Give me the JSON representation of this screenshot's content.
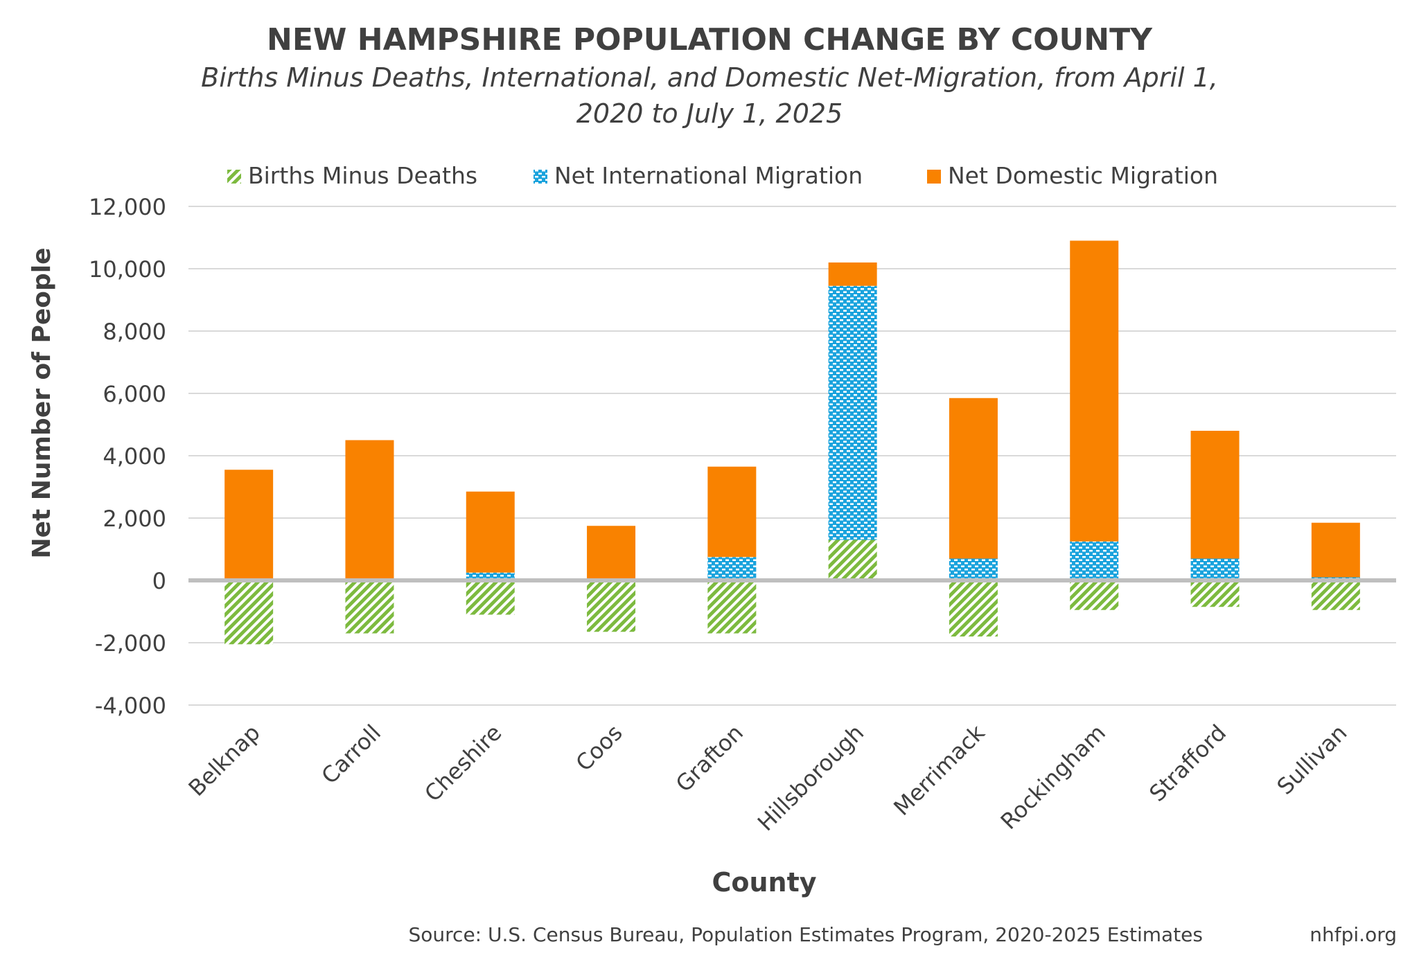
{
  "chart_data": {
    "type": "bar",
    "stacked": true,
    "title": "NEW HAMPSHIRE POPULATION CHANGE BY COUNTY",
    "subtitle_lines": [
      "Births Minus Deaths, International, and Domestic Net-Migration, from April 1,",
      "2020 to July 1, 2025"
    ],
    "xlabel": "County",
    "ylabel": "Net Number of People",
    "ylim": [
      -4000,
      12000
    ],
    "yticks": [
      12000,
      10000,
      8000,
      6000,
      4000,
      2000,
      0,
      -2000,
      -4000
    ],
    "ytick_labels": [
      "12,000",
      "10,000",
      "8,000",
      "6,000",
      "4,000",
      "2,000",
      "0",
      "-2,000",
      "-4,000"
    ],
    "grid": true,
    "legend_position": "top",
    "categories": [
      "Belknap",
      "Carroll",
      "Cheshire",
      "Coos",
      "Grafton",
      "Hillsborough",
      "Merrimack",
      "Rockingham",
      "Strafford",
      "Sullivan"
    ],
    "series": [
      {
        "name": "Births Minus Deaths",
        "color": "#7dba3f",
        "pattern": "diagonal-hatch",
        "values": [
          -2050,
          -1700,
          -1100,
          -1650,
          -1700,
          1300,
          -1800,
          -950,
          -850,
          -950
        ]
      },
      {
        "name": "Net International Migration",
        "color": "#1aa3dd",
        "pattern": "dots",
        "values": [
          0,
          0,
          250,
          0,
          750,
          8150,
          700,
          1250,
          700,
          100
        ]
      },
      {
        "name": "Net Domestic Migration",
        "color": "#f98200",
        "pattern": "solid",
        "values": [
          3550,
          4500,
          2600,
          1750,
          2900,
          750,
          5150,
          9650,
          4100,
          1750
        ]
      }
    ]
  },
  "footer": {
    "source": "Source: U.S. Census Bureau, Population Estimates Program, 2020-2025 Estimates",
    "site": "nhfpi.org"
  },
  "colors": {
    "text": "#404040",
    "gridline": "#d9d9d9",
    "zero_line": "#bfbfbf"
  }
}
